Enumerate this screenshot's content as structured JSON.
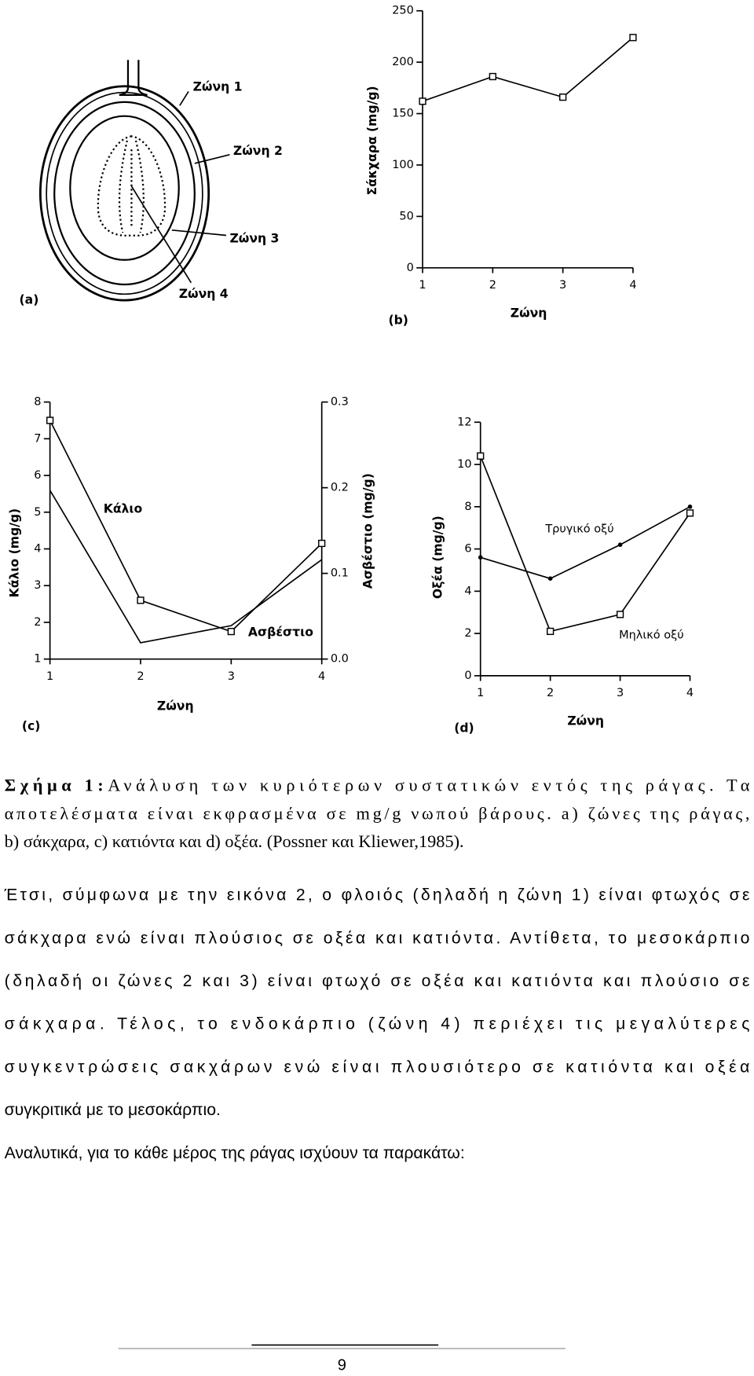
{
  "diagram": {
    "label": "(a)",
    "zones": [
      "Ζώνη 1",
      "Ζώνη 2",
      "Ζώνη 3",
      "Ζώνη 4"
    ]
  },
  "chart_data": [
    {
      "type": "line",
      "label": "(b)",
      "ylabel": "Σάκχαρα (mg/g)",
      "xlabel": "Ζώνη",
      "x": [
        1,
        2,
        3,
        4
      ],
      "xlim": [
        1,
        4
      ],
      "xticks": [
        1,
        2,
        3,
        4
      ],
      "ylim": [
        0,
        250
      ],
      "yticks": [
        0,
        50,
        100,
        150,
        200,
        250
      ],
      "series": [
        {
          "color": "#000000",
          "marker": "square",
          "values": [
            162,
            186,
            166,
            224
          ]
        }
      ]
    },
    {
      "type": "line",
      "label": "(c)",
      "ylabel": "Κάλιο (mg/g)",
      "y2label": "Ασβέστιο (mg/g)",
      "xlabel": "Ζώνη",
      "x": [
        1,
        2,
        3,
        4
      ],
      "xlim": [
        1,
        4
      ],
      "xticks": [
        1,
        2,
        3,
        4
      ],
      "ylim": [
        1,
        8
      ],
      "yticks": [
        1,
        2,
        3,
        4,
        5,
        6,
        7,
        8
      ],
      "y2lim": [
        0,
        0.3
      ],
      "y2ticks": [
        {
          "value": 0,
          "label": "0.0"
        },
        0.1,
        0.2,
        0.3
      ],
      "series": [
        {
          "name": "Κάλιο",
          "color": "#000000",
          "marker": "square",
          "values": [
            7.5,
            2.6,
            1.75,
            4.15
          ]
        },
        {
          "name": "Ασβέστιο",
          "color": "#000000",
          "marker": "none",
          "axis": "y2",
          "values": [
            0.197,
            0.019,
            0.039,
            0.116
          ]
        }
      ]
    },
    {
      "type": "line",
      "label": "(d)",
      "ylabel": "Οξέα (mg/g)",
      "xlabel": "Ζώνη",
      "x": [
        1,
        2,
        3,
        4
      ],
      "xlim": [
        1,
        4
      ],
      "xticks": [
        1,
        2,
        3,
        4
      ],
      "ylim": [
        0,
        12
      ],
      "yticks": [
        0,
        2,
        4,
        6,
        8,
        10,
        12
      ],
      "series": [
        {
          "name": "Τρυγικό οξύ",
          "color": "#000000",
          "marker": "dot",
          "values": [
            5.6,
            4.6,
            6.2,
            8.0
          ]
        },
        {
          "name": "Μηλικό οξύ",
          "color": "#000000",
          "marker": "square",
          "values": [
            10.4,
            2.1,
            2.9,
            7.7
          ]
        }
      ]
    }
  ],
  "caption": {
    "label": "Σχήμα 1:",
    "lines": [
      "Ανάλυση των κυριότερων συστατικών εντός της ράγας. Τα",
      "αποτελέσματα είναι εκφρασμένα σε mg/g νωπού βάρους. a) ζώνες της ράγας,",
      "b) σάκχαρα, c) κατιόντα και d) οξέα. (Possner και Kliewer,1985)."
    ]
  },
  "paragraphs": [
    [
      "Έτσι, σύμφωνα με την εικόνα 2, ο φλοιός (δηλαδή η ζώνη 1) είναι φτωχός σε",
      "σάκχαρα ενώ είναι πλούσιος σε οξέα και κατιόντα. Αντίθετα, το μεσοκάρπιο",
      "(δηλαδή οι ζώνες 2 και 3) είναι φτωχό σε οξέα και κατιόντα και πλούσιο σε",
      "σάκχαρα. Τέλος, το ενδοκάρπιο (ζώνη 4) περιέχει τις μεγαλύτερες",
      "συγκεντρώσεις σακχάρων ενώ είναι πλουσιότερο σε κατιόντα και οξέα",
      "συγκριτικά με το μεσοκάρπιο."
    ],
    [
      "Αναλυτικά, για το κάθε μέρος της ράγας ισχύουν τα παρακάτω:"
    ]
  ],
  "page_number": "9"
}
